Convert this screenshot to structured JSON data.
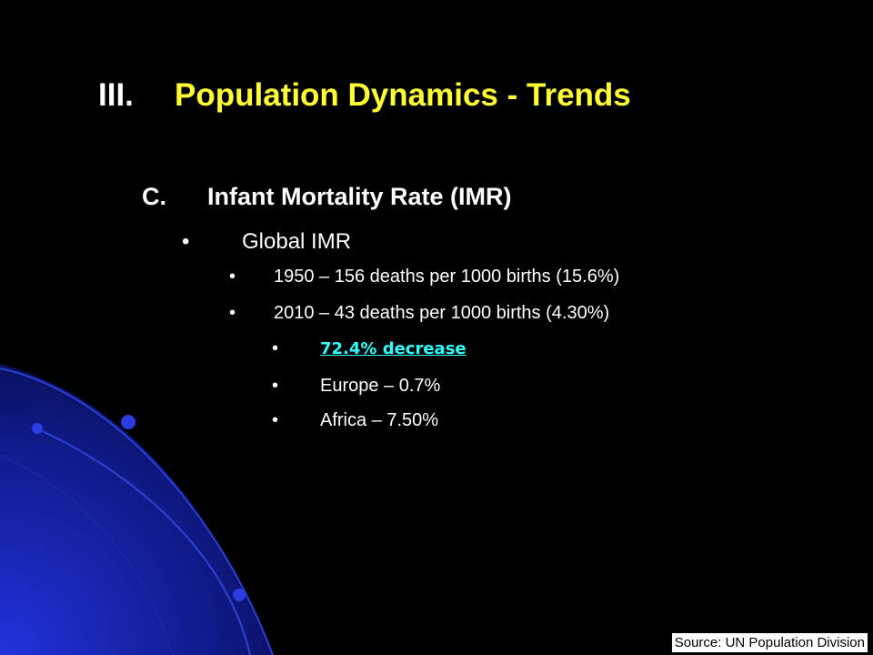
{
  "title": {
    "number": "III.",
    "text": "Population Dynamics - Trends",
    "color": "#ffff33"
  },
  "section": {
    "letter": "C.",
    "text": "Infant Mortality Rate (IMR)"
  },
  "bullets": {
    "symbol": "•",
    "global": "Global IMR",
    "y1950": "1950 – 156 deaths per 1000 births (15.6%)",
    "y2010": "2010 – 43 deaths per 1000 births (4.30%)",
    "decrease": "72.4% decrease",
    "europe": "Europe – 0.7%",
    "africa": "Africa – 7.50%"
  },
  "source": "Source: UN Population Division",
  "colors": {
    "background": "#000000",
    "link": "#33ffff",
    "accent_blue": "#1f2fc8"
  }
}
